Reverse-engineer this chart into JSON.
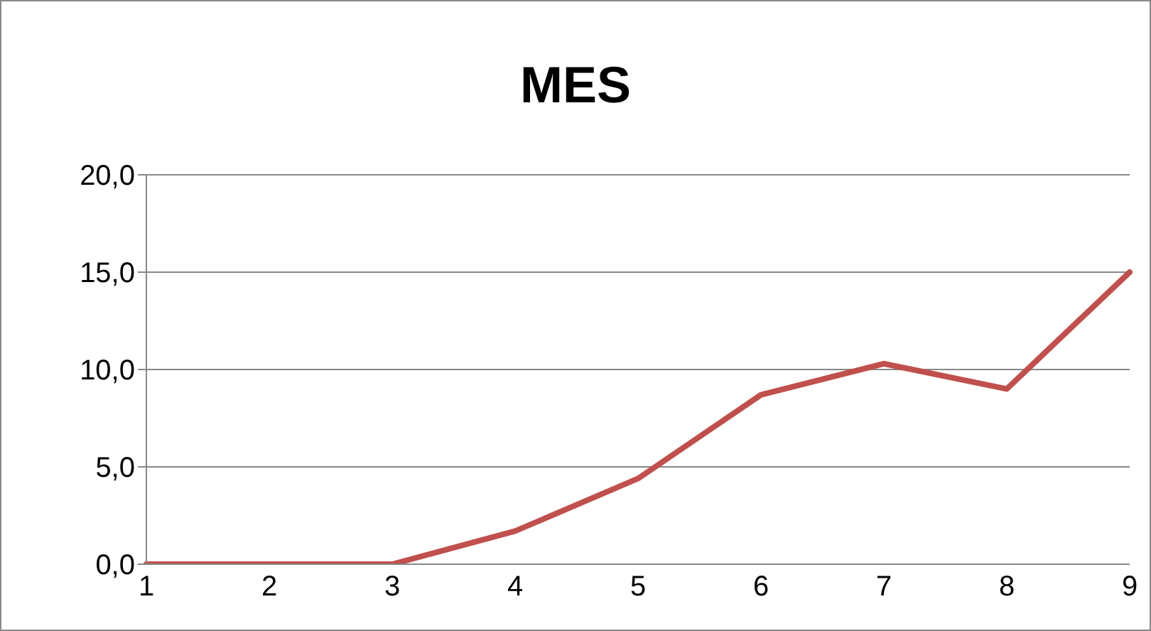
{
  "chart_data": {
    "type": "line",
    "title": "MES",
    "categories": [
      "1",
      "2",
      "3",
      "4",
      "5",
      "6",
      "7",
      "8",
      "9"
    ],
    "series": [
      {
        "color": "#c0504d",
        "values": [
          0,
          0,
          0,
          1.7,
          4.4,
          8.7,
          10.3,
          9.0,
          15.0
        ]
      }
    ],
    "ylim": [
      0,
      20
    ],
    "yticks": [
      {
        "value": 0,
        "label": "0,0"
      },
      {
        "value": 5,
        "label": "5,0"
      },
      {
        "value": 10,
        "label": "10,0"
      },
      {
        "value": 15,
        "label": "15,0"
      },
      {
        "value": 20,
        "label": "20,0"
      }
    ],
    "grid": "y",
    "legend": false,
    "marker": "none"
  }
}
